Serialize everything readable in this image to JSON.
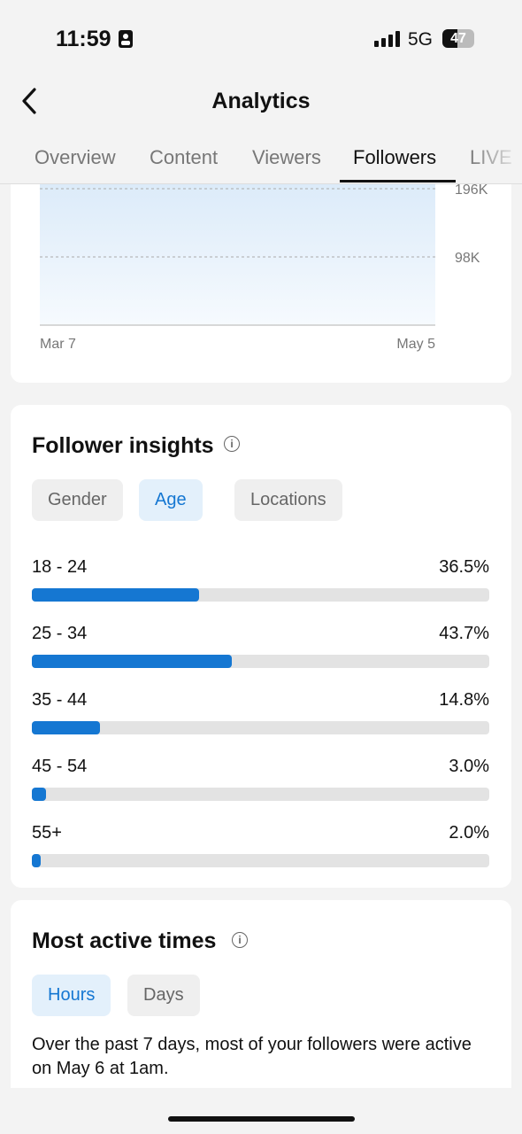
{
  "status_bar": {
    "time": "11:59",
    "network": "5G",
    "battery": "47"
  },
  "header": {
    "title": "Analytics"
  },
  "tabs": {
    "items": [
      "Overview",
      "Content",
      "Viewers",
      "Followers",
      "LIVE"
    ],
    "active": 3
  },
  "follower_chart": {
    "ylim": [
      0,
      196000
    ],
    "yticks": [
      {
        "value": 196000,
        "label": "196K"
      },
      {
        "value": 98000,
        "label": "98K"
      }
    ],
    "x_labels": [
      "Mar 7",
      "May 5"
    ]
  },
  "follower_insights": {
    "title": "Follower insights",
    "filters": [
      "Gender",
      "Age",
      "Locations"
    ],
    "active_filter": 1,
    "categories": [
      "18 - 24",
      "25 - 34",
      "35 - 44",
      "45 - 54",
      "55+"
    ],
    "values": [
      36.5,
      43.7,
      14.8,
      3.0,
      2.0
    ],
    "value_labels": [
      "36.5%",
      "43.7%",
      "14.8%",
      "3.0%",
      "2.0%"
    ],
    "xlim": [
      0,
      100
    ]
  },
  "most_active_times": {
    "title": "Most active times",
    "filters": [
      "Hours",
      "Days"
    ],
    "active_filter": 0,
    "text": "Over the past 7 days, most of your followers were active on May 6 at 1am."
  }
}
